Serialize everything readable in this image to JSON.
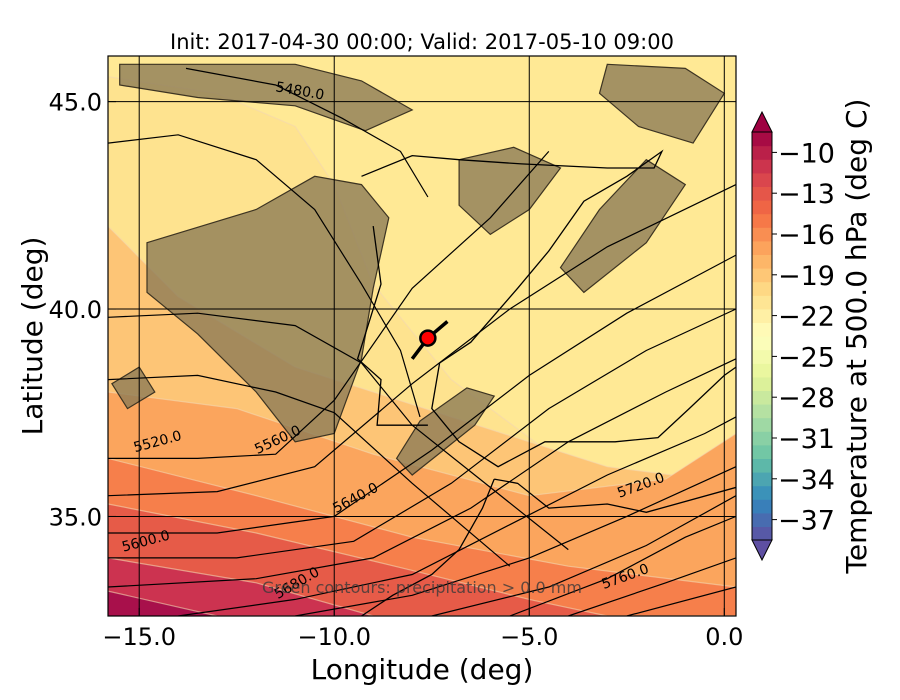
{
  "chart_data": {
    "type": "heatmap",
    "title": "Init: 2017-04-30 00:00; Valid: 2017-05-10 09:00",
    "xlabel": "Longitude (deg)",
    "ylabel": "Latitude (deg)",
    "xlim": [
      -15.8,
      0.3
    ],
    "ylim": [
      32.6,
      46.1
    ],
    "x_ticks": [
      {
        "value": -15,
        "label": "−15.0"
      },
      {
        "value": -10,
        "label": "−10.0"
      },
      {
        "value": -5,
        "label": "−5.0"
      },
      {
        "value": 0,
        "label": "0.0"
      }
    ],
    "y_ticks": [
      {
        "value": 35,
        "label": "35.0"
      },
      {
        "value": 40,
        "label": "40.0"
      },
      {
        "value": 45,
        "label": "45.0"
      }
    ],
    "colorbar": {
      "label": "Temperature at 500.0 hPa (deg C)",
      "vmin": -38.5,
      "vmax": -8.5,
      "extend": "both",
      "ticks": [
        {
          "value": -10,
          "label": "−10"
        },
        {
          "value": -13,
          "label": "−13"
        },
        {
          "value": -16,
          "label": "−16"
        },
        {
          "value": -19,
          "label": "−19"
        },
        {
          "value": -22,
          "label": "−22"
        },
        {
          "value": -25,
          "label": "−25"
        },
        {
          "value": -28,
          "label": "−28"
        },
        {
          "value": -31,
          "label": "−31"
        },
        {
          "value": -34,
          "label": "−34"
        },
        {
          "value": -37,
          "label": "−37"
        }
      ],
      "colors_cold_to_warm": [
        "#5e4fa2",
        "#3288bd",
        "#66c2a5",
        "#abdda4",
        "#e6f598",
        "#ffffbf",
        "#fee08b",
        "#fdae61",
        "#f46d43",
        "#d53e4f",
        "#9e0142"
      ]
    },
    "temperature_bands": [
      {
        "temp": -21,
        "color": "#fee38f",
        "upper_left": [
          [
            -15.8,
            45.6
          ],
          [
            -13.0,
            45.2
          ],
          [
            -11.0,
            44.4
          ],
          [
            -10.0,
            43.0
          ],
          [
            -9.0,
            40.6
          ],
          [
            -7.0,
            38.3
          ],
          [
            -3.0,
            35.5
          ],
          [
            0.3,
            33.8
          ]
        ]
      },
      {
        "temp": -19,
        "color": "#fdc576",
        "upper_left": [
          [
            -15.8,
            42.0
          ],
          [
            -14.0,
            40.3
          ],
          [
            -11.0,
            38.6
          ],
          [
            -7.0,
            37.4
          ],
          [
            -3.0,
            36.2
          ],
          [
            0.3,
            35.8
          ]
        ]
      },
      {
        "temp": -17,
        "color": "#fba55d",
        "upper_left": [
          [
            -15.8,
            38.0
          ],
          [
            -12.5,
            37.6
          ],
          [
            -9.0,
            36.5
          ],
          [
            -5.0,
            35.5
          ],
          [
            -1.5,
            35.9
          ],
          [
            0.3,
            37.0
          ]
        ]
      },
      {
        "temp": -15,
        "color": "#f67f4b",
        "upper_left": [
          [
            -15.8,
            36.4
          ],
          [
            -12.0,
            35.5
          ],
          [
            -8.0,
            34.5
          ],
          [
            -4.0,
            33.8
          ],
          [
            0.3,
            33.3
          ]
        ]
      },
      {
        "temp": -13,
        "color": "#e65b48",
        "upper_left": [
          [
            -15.8,
            35.3
          ],
          [
            -12.0,
            34.6
          ],
          [
            -8.0,
            33.7
          ],
          [
            -5.0,
            33.0
          ],
          [
            -3.0,
            32.6
          ]
        ]
      },
      {
        "temp": -11,
        "color": "#cc3350",
        "upper_left": [
          [
            -15.8,
            34.0
          ],
          [
            -12.0,
            33.4
          ],
          [
            -9.0,
            32.6
          ]
        ]
      },
      {
        "temp": -10,
        "color": "#a8104b",
        "upper_left": [
          [
            -15.8,
            33.2
          ],
          [
            -13.0,
            32.6
          ]
        ]
      }
    ],
    "height_contours": [
      {
        "level": 5480,
        "label": "5480.0",
        "label_at": [
          -10.9,
          45.15
        ],
        "label_rot": 10,
        "points": [
          [
            -13.8,
            45.8
          ],
          [
            -11.5,
            45.4
          ],
          [
            -9.8,
            44.6
          ],
          [
            -8.3,
            43.8
          ],
          [
            -7.6,
            42.7
          ]
        ]
      },
      {
        "level": 5500,
        "label": "",
        "points": [
          [
            -15.8,
            44.0
          ],
          [
            -14.0,
            44.2
          ],
          [
            -12.0,
            43.6
          ],
          [
            -10.5,
            42.4
          ],
          [
            -9.3,
            40.6
          ],
          [
            -8.3,
            39.0
          ],
          [
            -7.8,
            37.4
          ]
        ]
      },
      {
        "level": 5520,
        "label": "5520.0",
        "label_at": [
          -14.5,
          36.7
        ],
        "label_rot": -15,
        "points": [
          [
            -15.8,
            39.8
          ],
          [
            -13.5,
            39.9
          ],
          [
            -11.0,
            39.6
          ],
          [
            -9.3,
            38.7
          ],
          [
            -8.0,
            37.2
          ],
          [
            -6.0,
            35.7
          ],
          [
            -4.0,
            34.2
          ]
        ]
      },
      {
        "level": 5540,
        "label": "",
        "points": [
          [
            -15.8,
            38.3
          ],
          [
            -13.5,
            38.4
          ],
          [
            -11.5,
            38.0
          ],
          [
            -10.0,
            37.5
          ],
          [
            -8.0,
            35.8
          ],
          [
            -5.5,
            33.8
          ]
        ]
      },
      {
        "level": 5560,
        "label": "5560.0",
        "label_at": [
          -11.4,
          36.75
        ],
        "label_rot": -25,
        "points": [
          [
            -15.8,
            36.4
          ],
          [
            -13.5,
            36.4
          ],
          [
            -11.5,
            36.5
          ],
          [
            -10.0,
            37.8
          ],
          [
            -8.0,
            40.5
          ],
          [
            -6.0,
            42.2
          ],
          [
            -4.5,
            43.8
          ]
        ]
      },
      {
        "level": 5580,
        "label": "",
        "points": [
          [
            -15.8,
            35.5
          ],
          [
            -13.0,
            35.6
          ],
          [
            -10.5,
            36.2
          ],
          [
            -8.0,
            38.2
          ],
          [
            -5.5,
            40.0
          ],
          [
            -3.0,
            41.5
          ],
          [
            0.3,
            43.0
          ]
        ]
      },
      {
        "level": 5600,
        "label": "5600.0",
        "label_at": [
          -14.8,
          34.3
        ],
        "label_rot": -15,
        "points": [
          [
            -15.8,
            34.6
          ],
          [
            -13.0,
            34.6
          ],
          [
            -10.0,
            35.0
          ],
          [
            -7.5,
            36.6
          ],
          [
            -5.0,
            38.4
          ],
          [
            -2.5,
            39.9
          ],
          [
            0.3,
            41.3
          ]
        ]
      },
      {
        "level": 5620,
        "label": "",
        "points": [
          [
            -15.8,
            34.0
          ],
          [
            -12.5,
            34.0
          ],
          [
            -9.5,
            34.4
          ],
          [
            -7.0,
            35.8
          ],
          [
            -4.5,
            37.6
          ],
          [
            -2.0,
            39.0
          ],
          [
            0.3,
            40.0
          ]
        ]
      },
      {
        "level": 5640,
        "label": "5640.0",
        "label_at": [
          -9.4,
          35.35
        ],
        "label_rot": -28,
        "points": [
          [
            -15.8,
            33.3
          ],
          [
            -12.0,
            33.5
          ],
          [
            -9.0,
            34.0
          ],
          [
            -6.5,
            35.2
          ],
          [
            -4.0,
            36.8
          ],
          [
            -1.5,
            38.0
          ],
          [
            0.3,
            38.8
          ]
        ]
      },
      {
        "level": 5660,
        "label": "",
        "points": [
          [
            -14.0,
            32.6
          ],
          [
            -11.0,
            33.0
          ],
          [
            -8.0,
            33.6
          ],
          [
            -5.5,
            34.8
          ],
          [
            -3.0,
            36.0
          ],
          [
            -0.5,
            37.0
          ],
          [
            0.3,
            37.4
          ]
        ]
      },
      {
        "level": 5680,
        "label": "5680.0",
        "label_at": [
          -10.9,
          33.3
        ],
        "label_rot": -30,
        "points": [
          [
            -11.0,
            32.6
          ],
          [
            -8.0,
            33.1
          ],
          [
            -5.0,
            34.0
          ],
          [
            -2.5,
            35.0
          ],
          [
            0.3,
            36.2
          ]
        ]
      },
      {
        "level": 5700,
        "label": "",
        "points": [
          [
            -7.5,
            32.6
          ],
          [
            -4.5,
            33.3
          ],
          [
            -2.0,
            34.3
          ],
          [
            0.3,
            35.5
          ]
        ]
      },
      {
        "level": 5720,
        "label": "5720.0",
        "label_at": [
          -2.1,
          35.65
        ],
        "label_rot": -20,
        "points": [
          [
            -5.5,
            32.6
          ],
          [
            -3.0,
            33.5
          ],
          [
            -1.0,
            34.5
          ],
          [
            0.3,
            35.0
          ]
        ]
      },
      {
        "level": 5740,
        "label": "",
        "points": [
          [
            -4.0,
            32.6
          ],
          [
            -1.5,
            33.4
          ],
          [
            0.3,
            34.0
          ]
        ]
      },
      {
        "level": 5760,
        "label": "5760.0",
        "label_at": [
          -2.5,
          33.45
        ],
        "label_rot": -20,
        "points": [
          [
            -2.5,
            32.6
          ],
          [
            0.3,
            33.3
          ]
        ]
      }
    ],
    "terrain_patches": [
      {
        "name": "north-patch",
        "points": [
          [
            -15.5,
            45.9
          ],
          [
            -11.0,
            45.9
          ],
          [
            -9.3,
            45.5
          ],
          [
            -8.0,
            44.8
          ],
          [
            -9.2,
            44.3
          ],
          [
            -11.0,
            44.9
          ],
          [
            -13.5,
            45.1
          ],
          [
            -15.5,
            45.4
          ]
        ]
      },
      {
        "name": "central-patch",
        "points": [
          [
            -14.8,
            41.6
          ],
          [
            -12.0,
            42.4
          ],
          [
            -10.5,
            43.2
          ],
          [
            -9.3,
            43.0
          ],
          [
            -8.6,
            42.2
          ],
          [
            -9.0,
            40.5
          ],
          [
            -9.3,
            38.8
          ],
          [
            -10.0,
            37.0
          ],
          [
            -11.0,
            36.8
          ],
          [
            -12.0,
            38.0
          ],
          [
            -13.5,
            39.4
          ],
          [
            -14.8,
            40.4
          ]
        ]
      },
      {
        "name": "east-patch",
        "points": [
          [
            -6.8,
            43.6
          ],
          [
            -5.4,
            43.9
          ],
          [
            -4.2,
            43.4
          ],
          [
            -5.0,
            42.4
          ],
          [
            -6.0,
            41.8
          ],
          [
            -6.8,
            42.5
          ]
        ]
      },
      {
        "name": "ne-patch",
        "points": [
          [
            -3.6,
            40.4
          ],
          [
            -2.0,
            41.6
          ],
          [
            -1.0,
            43.0
          ],
          [
            -2.0,
            43.6
          ],
          [
            -3.2,
            42.4
          ],
          [
            -4.2,
            41.0
          ]
        ]
      },
      {
        "name": "far-ne-patch",
        "points": [
          [
            -3.0,
            45.9
          ],
          [
            -1.0,
            45.8
          ],
          [
            0.0,
            45.2
          ],
          [
            -0.8,
            44.0
          ],
          [
            -2.2,
            44.4
          ],
          [
            -3.2,
            45.2
          ]
        ]
      },
      {
        "name": "south-patch",
        "points": [
          [
            -7.8,
            37.3
          ],
          [
            -6.6,
            38.1
          ],
          [
            -5.9,
            37.9
          ],
          [
            -6.4,
            37.2
          ],
          [
            -7.2,
            36.6
          ],
          [
            -8.0,
            36.0
          ],
          [
            -8.4,
            36.4
          ]
        ]
      },
      {
        "name": "west-small-patch",
        "points": [
          [
            -15.7,
            38.2
          ],
          [
            -15.0,
            38.6
          ],
          [
            -14.6,
            38.0
          ],
          [
            -15.3,
            37.6
          ]
        ]
      }
    ],
    "coastline": [
      [
        -9.3,
        43.2
      ],
      [
        -8.0,
        43.7
      ],
      [
        -6.8,
        43.6
      ],
      [
        -5.2,
        43.5
      ],
      [
        -3.0,
        43.4
      ],
      [
        -1.8,
        43.4
      ],
      [
        -1.6,
        43.8
      ],
      [
        -2.5,
        43.2
      ],
      [
        -3.6,
        42.6
      ],
      [
        -4.5,
        41.4
      ],
      [
        -5.3,
        40.5
      ],
      [
        -6.5,
        39.2
      ],
      [
        -7.3,
        38.7
      ],
      [
        -7.5,
        37.6
      ],
      [
        -6.8,
        36.8
      ],
      [
        -5.8,
        36.2
      ],
      [
        -4.6,
        36.8
      ],
      [
        -2.8,
        36.8
      ],
      [
        -1.7,
        36.9
      ],
      [
        -0.9,
        37.6
      ],
      [
        0.0,
        38.4
      ],
      [
        0.3,
        38.6
      ]
    ],
    "portugal_coast": [
      [
        -9.0,
        42.0
      ],
      [
        -8.8,
        40.6
      ],
      [
        -9.4,
        38.8
      ],
      [
        -8.8,
        38.3
      ],
      [
        -8.9,
        37.2
      ],
      [
        -7.6,
        37.2
      ]
    ],
    "africa_coast": [
      [
        -5.9,
        35.9
      ],
      [
        -5.3,
        35.8
      ],
      [
        -4.5,
        35.2
      ],
      [
        -3.0,
        35.3
      ],
      [
        -2.0,
        35.1
      ],
      [
        0.3,
        35.7
      ]
    ],
    "africa_atlantic_coast": [
      [
        -5.9,
        35.9
      ],
      [
        -6.2,
        35.2
      ],
      [
        -6.8,
        34.2
      ],
      [
        -7.5,
        33.6
      ],
      [
        -8.5,
        33.1
      ],
      [
        -9.3,
        32.6
      ]
    ],
    "meridians": [
      -15,
      -10,
      -5,
      0
    ],
    "parallels": [
      35,
      40,
      45
    ],
    "marker": {
      "lon": -7.6,
      "lat": 39.3,
      "color": "#ff0000"
    },
    "marker_track": [
      [
        -8.0,
        38.8
      ],
      [
        -7.6,
        39.3
      ],
      [
        -7.1,
        39.7
      ]
    ],
    "precip_note": "Green contours: precipitation > 0.0 mm"
  }
}
